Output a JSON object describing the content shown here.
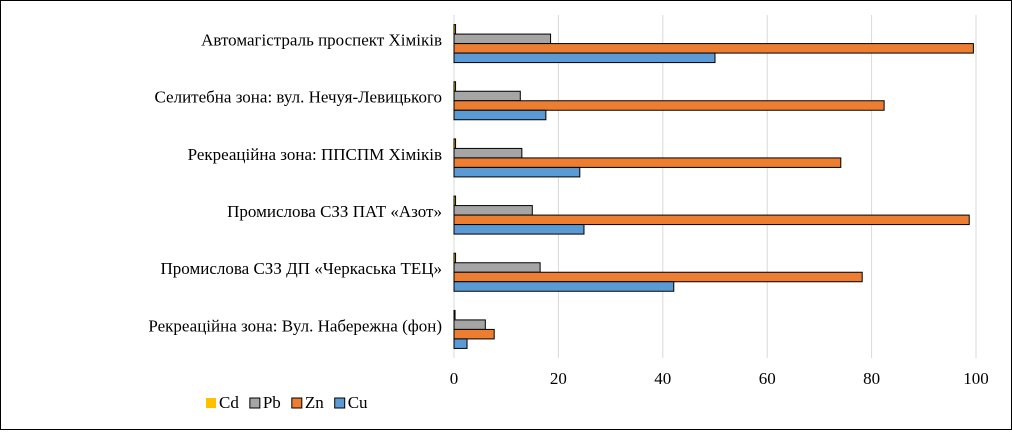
{
  "chart_data": {
    "type": "bar",
    "orientation": "horizontal",
    "categories": [
      "Автомагістраль проспект Хіміків",
      "Селитебна зона: вул. Нечуя-Левицького",
      "Рекреаційна зона: ППСПМ Хіміків",
      "Промислова СЗЗ ПАТ «Азот»",
      "Промислова СЗЗ ДП «Черкаська ТЕЦ»",
      "Рекреаційна зона: Вул. Набережна (фон)"
    ],
    "series": [
      {
        "name": "Cd",
        "color": "#ffc000",
        "values": [
          0.3,
          0.3,
          0.3,
          0.3,
          0.3,
          0.2
        ]
      },
      {
        "name": "Pb",
        "color": "#a5a5a5",
        "values": [
          18.5,
          12.7,
          13,
          15,
          16.5,
          6
        ]
      },
      {
        "name": "Zn",
        "color": "#ed7d31",
        "values": [
          99.5,
          82.4,
          74.1,
          98.7,
          78.2,
          7.7
        ]
      },
      {
        "name": "Cu",
        "color": "#5b9bd5",
        "values": [
          50,
          17.6,
          24.1,
          24.9,
          42.1,
          2.5
        ]
      }
    ],
    "xlim": [
      0,
      100
    ],
    "xticks": [
      0,
      20,
      40,
      60,
      80,
      100
    ],
    "grid": true,
    "legend": "bottom"
  }
}
